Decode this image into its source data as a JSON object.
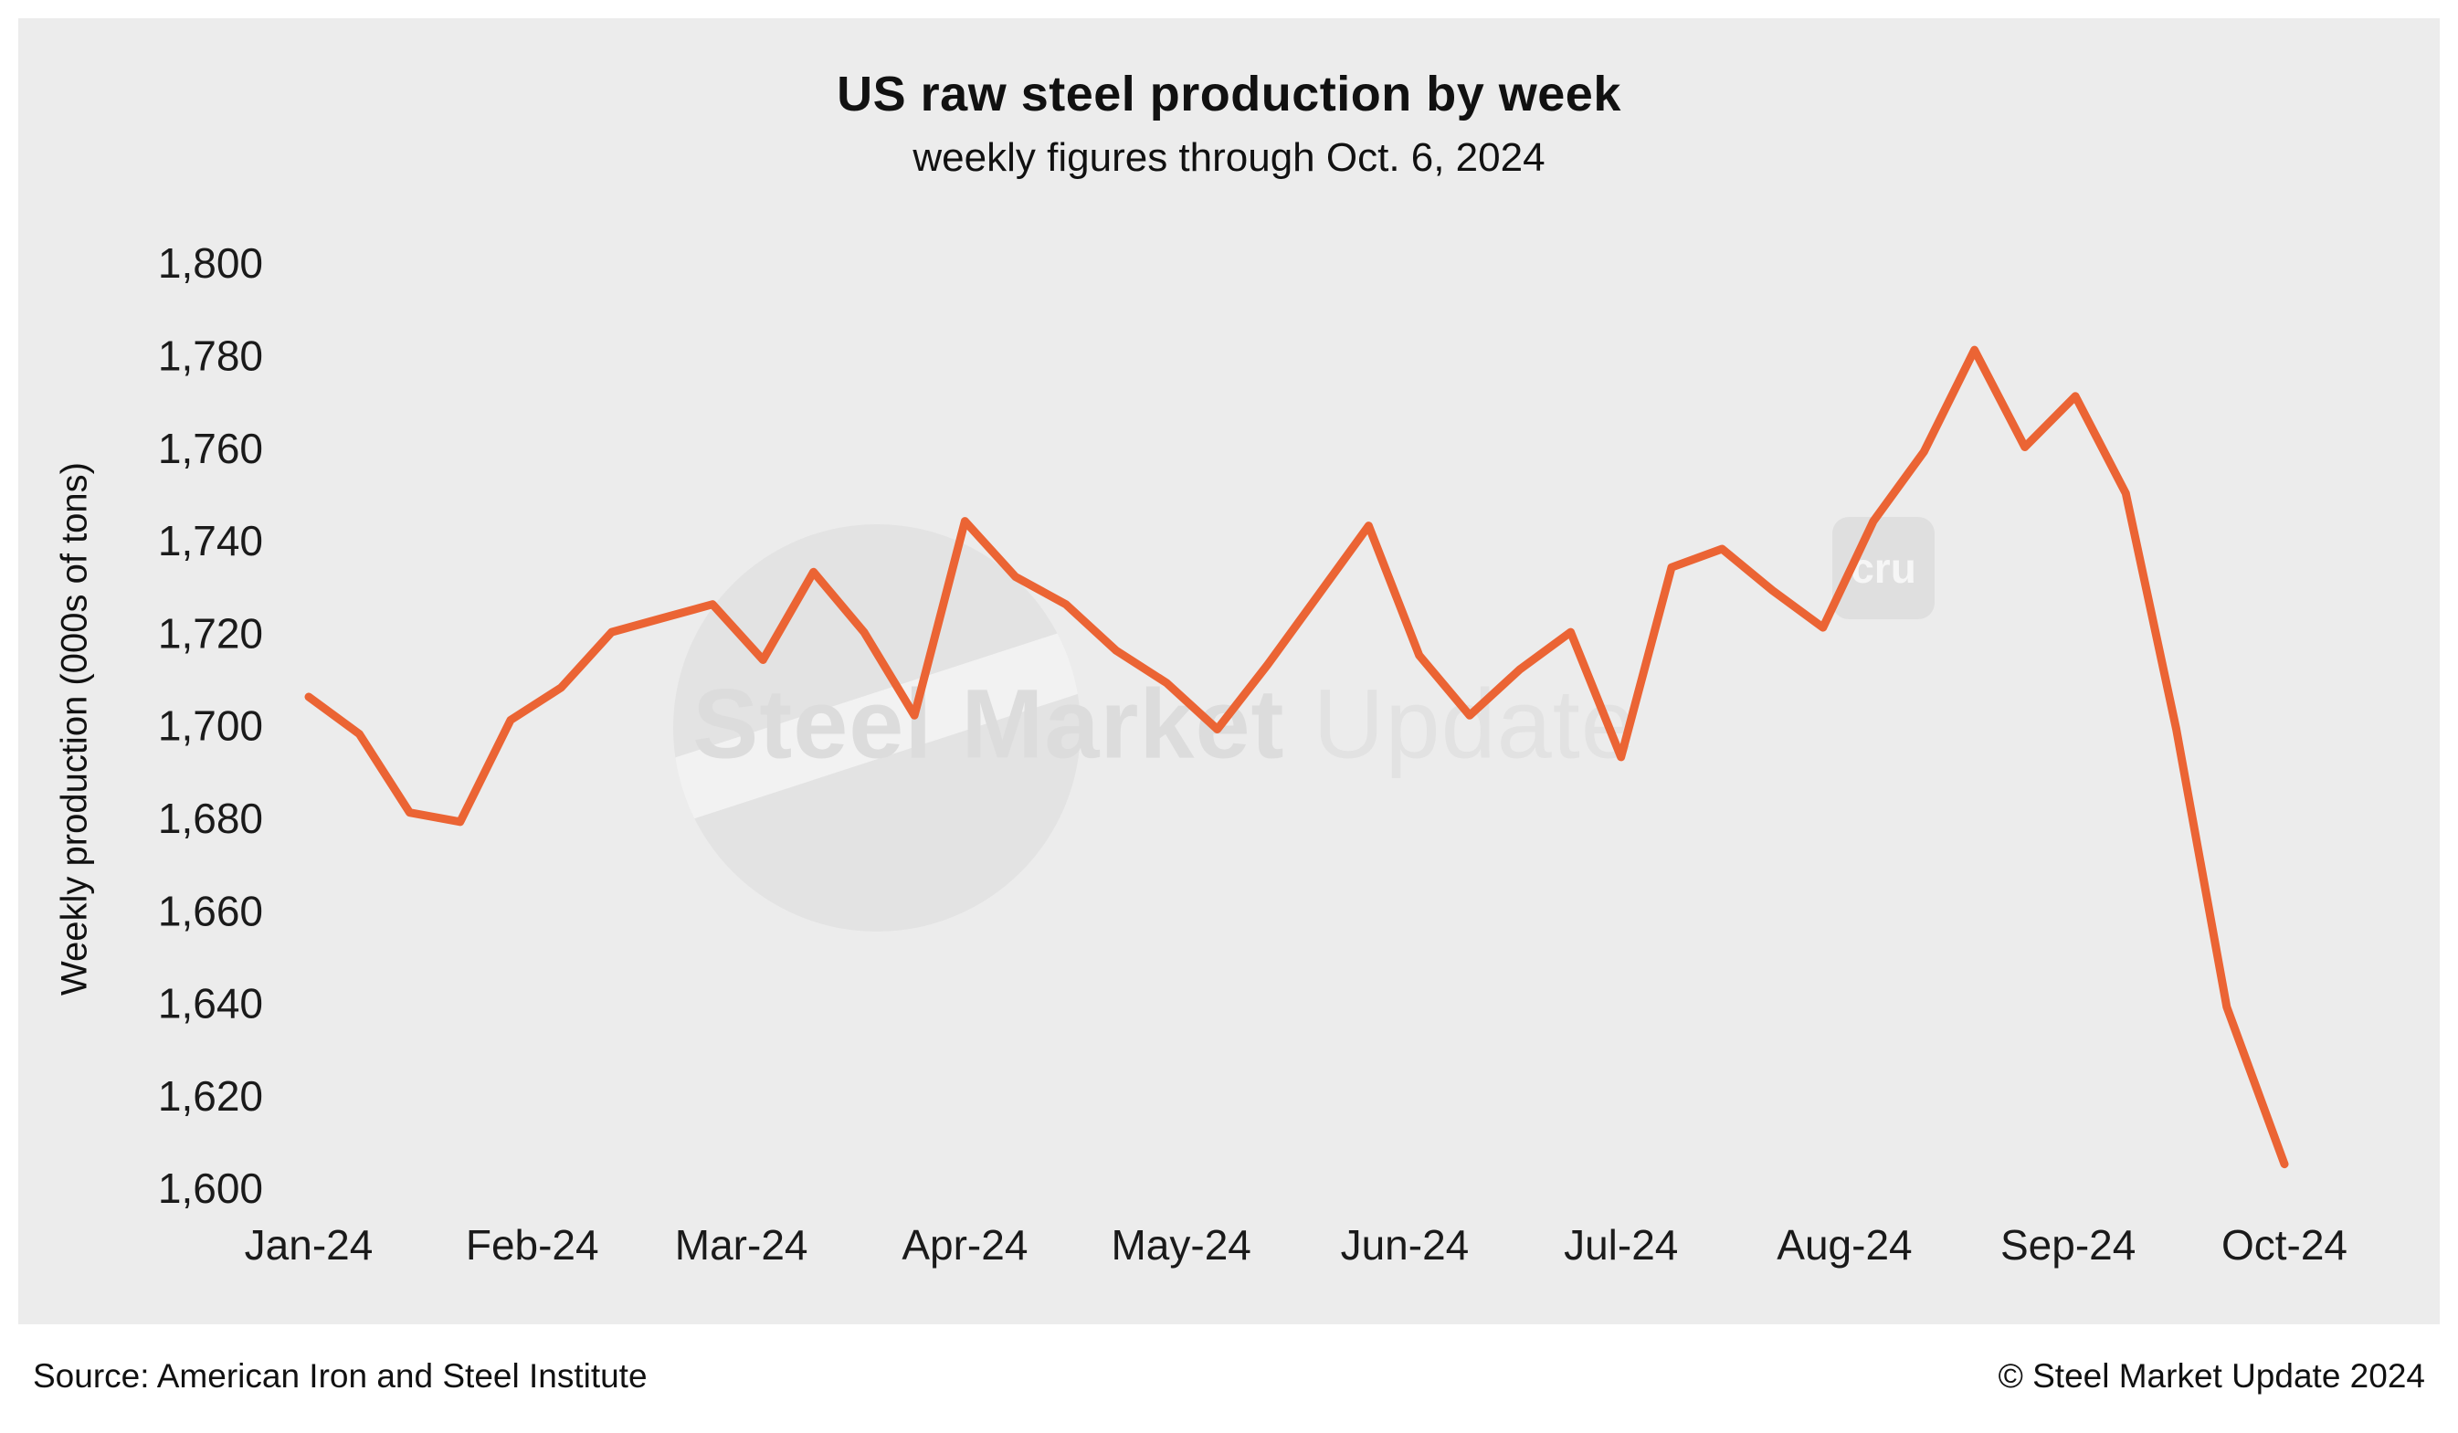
{
  "page": {
    "background": "#ffffff",
    "panel_background": "#ececec"
  },
  "chart_data": {
    "type": "line",
    "title": "US raw steel production by week",
    "subtitle": "weekly figures through Oct. 6, 2024",
    "xlabel": "",
    "ylabel": "Weekly production (000s of tons)",
    "ylim": [
      1600,
      1800
    ],
    "y_tick_step": 20,
    "y_tick_labels": [
      "1,600",
      "1,620",
      "1,640",
      "1,660",
      "1,680",
      "1,700",
      "1,720",
      "1,740",
      "1,760",
      "1,780",
      "1,800"
    ],
    "x_ticks": [
      {
        "label": "Jan-24",
        "date": "2024-01-06"
      },
      {
        "label": "Feb-24",
        "date": "2024-02-06"
      },
      {
        "label": "Mar-24",
        "date": "2024-03-06"
      },
      {
        "label": "Apr-24",
        "date": "2024-04-06"
      },
      {
        "label": "May-24",
        "date": "2024-05-06"
      },
      {
        "label": "Jun-24",
        "date": "2024-06-06"
      },
      {
        "label": "Jul-24",
        "date": "2024-07-06"
      },
      {
        "label": "Aug-24",
        "date": "2024-08-06"
      },
      {
        "label": "Sep-24",
        "date": "2024-09-06"
      },
      {
        "label": "Oct-24",
        "date": "2024-10-06"
      }
    ],
    "grid": false,
    "legend": "none",
    "series": [
      {
        "name": "US weekly raw steel production (000s of tons)",
        "color": "#EB6434",
        "points": [
          {
            "date": "2024-01-06",
            "value": 1707
          },
          {
            "date": "2024-01-13",
            "value": 1699
          },
          {
            "date": "2024-01-20",
            "value": 1682
          },
          {
            "date": "2024-01-27",
            "value": 1680
          },
          {
            "date": "2024-02-03",
            "value": 1702
          },
          {
            "date": "2024-02-10",
            "value": 1709
          },
          {
            "date": "2024-02-17",
            "value": 1721
          },
          {
            "date": "2024-02-24",
            "value": 1724
          },
          {
            "date": "2024-03-02",
            "value": 1727
          },
          {
            "date": "2024-03-09",
            "value": 1715
          },
          {
            "date": "2024-03-16",
            "value": 1734
          },
          {
            "date": "2024-03-23",
            "value": 1721
          },
          {
            "date": "2024-03-30",
            "value": 1703
          },
          {
            "date": "2024-04-06",
            "value": 1745
          },
          {
            "date": "2024-04-13",
            "value": 1733
          },
          {
            "date": "2024-04-20",
            "value": 1727
          },
          {
            "date": "2024-04-27",
            "value": 1717
          },
          {
            "date": "2024-05-04",
            "value": 1710
          },
          {
            "date": "2024-05-11",
            "value": 1700
          },
          {
            "date": "2024-05-18",
            "value": 1714
          },
          {
            "date": "2024-05-25",
            "value": 1729
          },
          {
            "date": "2024-06-01",
            "value": 1744
          },
          {
            "date": "2024-06-08",
            "value": 1716
          },
          {
            "date": "2024-06-15",
            "value": 1703
          },
          {
            "date": "2024-06-22",
            "value": 1713
          },
          {
            "date": "2024-06-29",
            "value": 1721
          },
          {
            "date": "2024-07-06",
            "value": 1694
          },
          {
            "date": "2024-07-13",
            "value": 1735
          },
          {
            "date": "2024-07-20",
            "value": 1739
          },
          {
            "date": "2024-07-27",
            "value": 1730
          },
          {
            "date": "2024-08-03",
            "value": 1722
          },
          {
            "date": "2024-08-10",
            "value": 1745
          },
          {
            "date": "2024-08-17",
            "value": 1760
          },
          {
            "date": "2024-08-24",
            "value": 1782
          },
          {
            "date": "2024-08-31",
            "value": 1761
          },
          {
            "date": "2024-09-07",
            "value": 1772
          },
          {
            "date": "2024-09-14",
            "value": 1751
          },
          {
            "date": "2024-09-21",
            "value": 1700
          },
          {
            "date": "2024-09-28",
            "value": 1640
          },
          {
            "date": "2024-10-06",
            "value": 1606
          }
        ]
      }
    ]
  },
  "watermark": {
    "bold": "Steel Market",
    "light": "Update",
    "cru": "cru"
  },
  "footer": {
    "source": "Source: American Iron and Steel Institute",
    "copyright": "© Steel Market Update 2024"
  }
}
